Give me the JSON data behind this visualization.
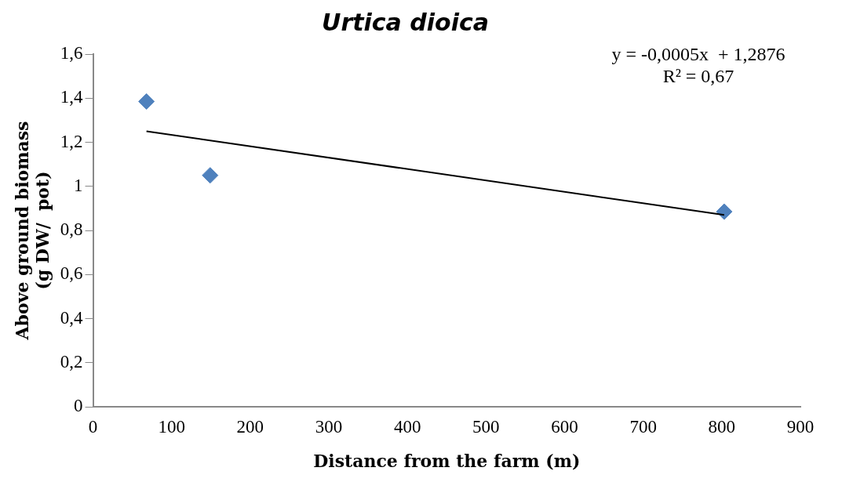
{
  "chart_data": {
    "type": "scatter",
    "title": "Urtica dioica",
    "xlabel": "Distance from the farm (m)",
    "ylabel": "Above ground biomass\n(g DW/  pot)",
    "x": [
      68,
      149,
      803
    ],
    "series": [
      {
        "color": "#4f81bd",
        "marker": "diamond",
        "values": [
          1.385,
          1.05,
          0.885
        ]
      },
      {
        "type": "line",
        "color": "#000000",
        "marker": "none",
        "x": [
          68,
          803
        ],
        "values": [
          1.25,
          0.87
        ]
      }
    ],
    "xlim": [
      0,
      900
    ],
    "xticks": [
      0,
      100,
      200,
      300,
      400,
      500,
      600,
      700,
      800,
      900
    ],
    "ylim": [
      0,
      1.6
    ],
    "yticks": [
      0,
      {
        "value": 0.2,
        "label": "0,2"
      },
      {
        "value": 0.4,
        "label": "0,4"
      },
      {
        "value": 0.6,
        "label": "0,6"
      },
      {
        "value": 0.8,
        "label": "0,8"
      },
      1,
      {
        "value": 1.2,
        "label": "1,2"
      },
      {
        "value": 1.4,
        "label": "1,4"
      },
      {
        "value": 1.6,
        "label": "1,6"
      }
    ],
    "annotations": [
      "y = -0,0005x  + 1,2876",
      "R² = 0,67"
    ],
    "grid": false,
    "legend": false
  }
}
